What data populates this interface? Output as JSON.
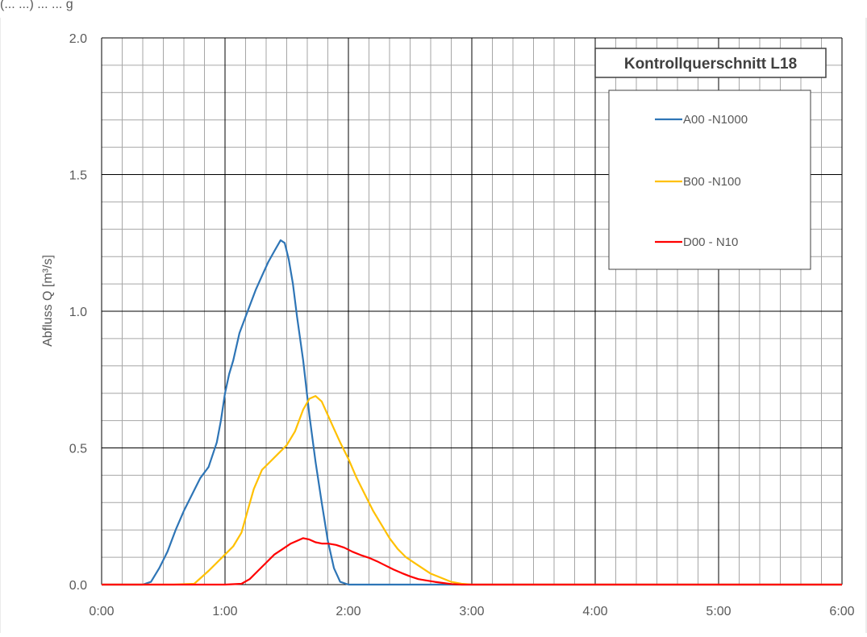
{
  "header": {
    "cropped_text": "(... ...) ... ... g"
  },
  "chart_data": {
    "type": "line",
    "title": "Kontrollquerschnitt L18",
    "xlabel": "",
    "ylabel": "Abfluss Q [m³/s]",
    "xlim": [
      0,
      360
    ],
    "ylim": [
      0,
      2.0
    ],
    "x_unit": "minutes (h:mm)",
    "xticks": [
      0,
      60,
      120,
      180,
      240,
      300,
      360
    ],
    "xtick_labels": [
      "0:00",
      "1:00",
      "2:00",
      "3:00",
      "4:00",
      "5:00",
      "6:00"
    ],
    "yticks": [
      0,
      0.5,
      1.0,
      1.5,
      2.0
    ],
    "ytick_labels": [
      "0.0",
      "0.5",
      "1.0",
      "1.5",
      "2.0"
    ],
    "grid": true,
    "legend_position": "top-right",
    "series": [
      {
        "name": "A00 -N1000",
        "color": "#2e75b6",
        "points": [
          [
            0,
            0
          ],
          [
            20,
            0
          ],
          [
            24,
            0.01
          ],
          [
            28,
            0.06
          ],
          [
            32,
            0.12
          ],
          [
            36,
            0.2
          ],
          [
            40,
            0.27
          ],
          [
            44,
            0.33
          ],
          [
            48,
            0.39
          ],
          [
            52,
            0.43
          ],
          [
            56,
            0.52
          ],
          [
            58,
            0.6
          ],
          [
            60,
            0.7
          ],
          [
            62,
            0.77
          ],
          [
            64,
            0.82
          ],
          [
            67,
            0.92
          ],
          [
            70,
            0.98
          ],
          [
            72,
            1.02
          ],
          [
            75,
            1.08
          ],
          [
            78,
            1.13
          ],
          [
            81,
            1.18
          ],
          [
            84,
            1.22
          ],
          [
            87,
            1.26
          ],
          [
            89,
            1.25
          ],
          [
            91,
            1.19
          ],
          [
            93,
            1.1
          ],
          [
            95,
            0.98
          ],
          [
            98,
            0.82
          ],
          [
            101,
            0.62
          ],
          [
            104,
            0.45
          ],
          [
            107,
            0.3
          ],
          [
            110,
            0.16
          ],
          [
            113,
            0.06
          ],
          [
            116,
            0.01
          ],
          [
            120,
            0
          ],
          [
            360,
            0
          ]
        ]
      },
      {
        "name": "B00 -N100",
        "color": "#ffc000",
        "points": [
          [
            0,
            0
          ],
          [
            35,
            0
          ],
          [
            45,
            0.003
          ],
          [
            52,
            0.05
          ],
          [
            56,
            0.08
          ],
          [
            60,
            0.11
          ],
          [
            64,
            0.14
          ],
          [
            68,
            0.19
          ],
          [
            71,
            0.27
          ],
          [
            74,
            0.35
          ],
          [
            78,
            0.42
          ],
          [
            82,
            0.45
          ],
          [
            86,
            0.48
          ],
          [
            90,
            0.51
          ],
          [
            94,
            0.56
          ],
          [
            98,
            0.64
          ],
          [
            101,
            0.68
          ],
          [
            104,
            0.69
          ],
          [
            107,
            0.67
          ],
          [
            110,
            0.62
          ],
          [
            113,
            0.57
          ],
          [
            116,
            0.52
          ],
          [
            120,
            0.46
          ],
          [
            124,
            0.39
          ],
          [
            128,
            0.33
          ],
          [
            132,
            0.27
          ],
          [
            136,
            0.22
          ],
          [
            140,
            0.17
          ],
          [
            144,
            0.13
          ],
          [
            148,
            0.1
          ],
          [
            152,
            0.08
          ],
          [
            156,
            0.06
          ],
          [
            160,
            0.04
          ],
          [
            165,
            0.025
          ],
          [
            170,
            0.01
          ],
          [
            175,
            0.003
          ],
          [
            180,
            0
          ],
          [
            360,
            0
          ]
        ]
      },
      {
        "name": "D00 - N10",
        "color": "#ff0000",
        "points": [
          [
            0,
            0
          ],
          [
            60,
            0
          ],
          [
            68,
            0.003
          ],
          [
            72,
            0.02
          ],
          [
            76,
            0.05
          ],
          [
            80,
            0.08
          ],
          [
            84,
            0.11
          ],
          [
            88,
            0.13
          ],
          [
            92,
            0.15
          ],
          [
            95,
            0.16
          ],
          [
            98,
            0.17
          ],
          [
            101,
            0.165
          ],
          [
            104,
            0.155
          ],
          [
            107,
            0.15
          ],
          [
            110,
            0.15
          ],
          [
            114,
            0.145
          ],
          [
            118,
            0.135
          ],
          [
            122,
            0.12
          ],
          [
            126,
            0.108
          ],
          [
            130,
            0.098
          ],
          [
            134,
            0.085
          ],
          [
            138,
            0.07
          ],
          [
            142,
            0.055
          ],
          [
            146,
            0.042
          ],
          [
            150,
            0.03
          ],
          [
            154,
            0.02
          ],
          [
            158,
            0.015
          ],
          [
            162,
            0.01
          ],
          [
            166,
            0.006
          ],
          [
            170,
            0.002
          ],
          [
            175,
            0
          ],
          [
            360,
            0
          ]
        ]
      }
    ]
  }
}
